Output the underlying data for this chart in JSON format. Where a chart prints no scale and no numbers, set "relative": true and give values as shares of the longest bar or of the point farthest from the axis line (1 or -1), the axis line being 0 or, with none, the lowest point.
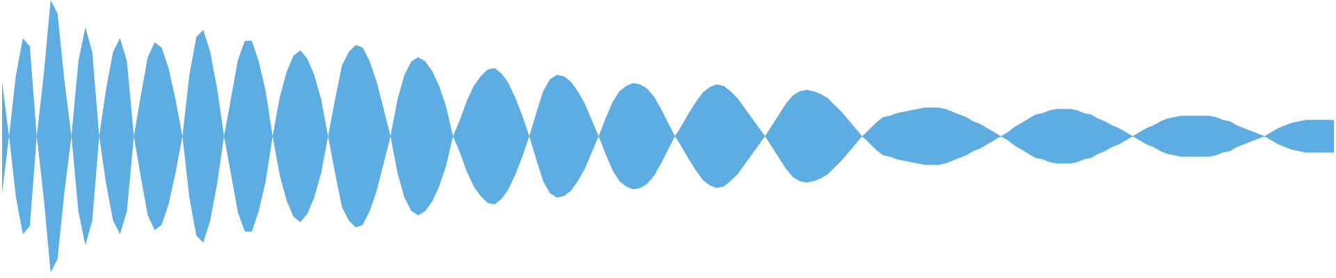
{
  "chart_data": {
    "type": "area",
    "relative": true,
    "ref_lines": [
      {
        "axis": "y",
        "value": 0,
        "color": "#5dade2",
        "line_style": "solid"
      }
    ],
    "categories": [
      null,
      null,
      null,
      null,
      null,
      null,
      null,
      null,
      null,
      null,
      null,
      null,
      null,
      null,
      null,
      null,
      null,
      null,
      null,
      null,
      null,
      null,
      null,
      null,
      null,
      null,
      null,
      null,
      null,
      null,
      null,
      null,
      null,
      null,
      null,
      null,
      null,
      null,
      null,
      null,
      null,
      null,
      null,
      null,
      null,
      null,
      null,
      null,
      null,
      null,
      null,
      null,
      null,
      null,
      null,
      null,
      null,
      null,
      null,
      null,
      null,
      null,
      null,
      null,
      null,
      null,
      null,
      null,
      null,
      null,
      null,
      null,
      null,
      null,
      null,
      null,
      null,
      null,
      null,
      null,
      null,
      null,
      null,
      null,
      null,
      null,
      null,
      null,
      null,
      null,
      null,
      null,
      null,
      null,
      null,
      null,
      null,
      null,
      null,
      null,
      null,
      null,
      null,
      null,
      null,
      null,
      null,
      null,
      null,
      null,
      null,
      null,
      null,
      null,
      null,
      null,
      null,
      null,
      null,
      null,
      null,
      null,
      null,
      null,
      null,
      null,
      null,
      null,
      null,
      null,
      null,
      null,
      null,
      null,
      null,
      null,
      null,
      null,
      null,
      null,
      null,
      null,
      null,
      null,
      null,
      null,
      null,
      null,
      null,
      null,
      null,
      null,
      null,
      null,
      null,
      null,
      null,
      null,
      null,
      null,
      null,
      null,
      null,
      null,
      null,
      null,
      null,
      null,
      null,
      null,
      null,
      null,
      null,
      null,
      null,
      null,
      null,
      null,
      null,
      null,
      null,
      null,
      null,
      null,
      null,
      null,
      null,
      null,
      null,
      null,
      null,
      null,
      null
    ],
    "series": [
      {
        "color": "#5dade2",
        "values": [
          0.4,
          0,
          0.45,
          0.72,
          0.66,
          0,
          0.45,
          1,
          0.9,
          0.4,
          0,
          0.55,
          0.8,
          0.62,
          0,
          0.35,
          0.62,
          0.72,
          0.55,
          0,
          0.3,
          0.58,
          0.69,
          0.65,
          0.5,
          0.27,
          0,
          0.45,
          0.73,
          0.78,
          0.62,
          0.35,
          0,
          0.28,
          0.56,
          0.7,
          0.7,
          0.55,
          0.33,
          0,
          0.28,
          0.47,
          0.59,
          0.63,
          0.57,
          0.45,
          0.27,
          0,
          0.27,
          0.52,
          0.62,
          0.67,
          0.65,
          0.55,
          0.4,
          0.2,
          0,
          0.27,
          0.45,
          0.55,
          0.58,
          0.55,
          0.48,
          0.37,
          0.22,
          0,
          0.12,
          0.26,
          0.37,
          0.44,
          0.49,
          0.5,
          0.46,
          0.39,
          0.28,
          0.15,
          0,
          0.17,
          0.33,
          0.42,
          0.45,
          0.44,
          0.4,
          0.33,
          0.24,
          0.12,
          0,
          0.13,
          0.25,
          0.33,
          0.37,
          0.39,
          0.38,
          0.35,
          0.29,
          0.2,
          0.1,
          0,
          0.08,
          0.17,
          0.25,
          0.32,
          0.36,
          0.38,
          0.37,
          0.33,
          0.28,
          0.21,
          0.14,
          0.07,
          0,
          0.08,
          0.16,
          0.24,
          0.3,
          0.33,
          0.34,
          0.33,
          0.31,
          0.28,
          0.23,
          0.18,
          0.12,
          0.06,
          0,
          0.05,
          0.1,
          0.14,
          0.15,
          0.17,
          0.18,
          0.19,
          0.2,
          0.21,
          0.21,
          0.21,
          0.2,
          0.18,
          0.16,
          0.14,
          0.11,
          0.09,
          0.06,
          0.03,
          0,
          0.03,
          0.07,
          0.1,
          0.13,
          0.16,
          0.17,
          0.19,
          0.2,
          0.2,
          0.2,
          0.19,
          0.17,
          0.16,
          0.13,
          0.11,
          0.08,
          0.06,
          0.03,
          0,
          0.03,
          0.06,
          0.08,
          0.11,
          0.13,
          0.14,
          0.15,
          0.15,
          0.15,
          0.15,
          0.15,
          0.14,
          0.12,
          0.11,
          0.08,
          0.06,
          0.04,
          0.02,
          0,
          0.03,
          0.06,
          0.08,
          0.1,
          0.11,
          0.12,
          0.12,
          0.12,
          0.12,
          0.12
        ]
      },
      {
        "color": "#5dade2",
        "values": [
          -0.42,
          0,
          -0.45,
          -0.72,
          -0.66,
          0,
          -0.45,
          -1,
          -0.9,
          -0.4,
          0,
          -0.55,
          -0.8,
          -0.62,
          0,
          -0.35,
          -0.62,
          -0.72,
          -0.55,
          0,
          -0.3,
          -0.58,
          -0.69,
          -0.65,
          -0.5,
          -0.27,
          0,
          -0.45,
          -0.73,
          -0.78,
          -0.62,
          -0.35,
          0,
          -0.28,
          -0.56,
          -0.7,
          -0.7,
          -0.55,
          -0.33,
          0,
          -0.28,
          -0.47,
          -0.59,
          -0.63,
          -0.57,
          -0.45,
          -0.27,
          0,
          -0.27,
          -0.52,
          -0.62,
          -0.67,
          -0.65,
          -0.55,
          -0.4,
          -0.2,
          0,
          -0.27,
          -0.45,
          -0.55,
          -0.58,
          -0.55,
          -0.48,
          -0.37,
          -0.22,
          0,
          -0.12,
          -0.26,
          -0.37,
          -0.44,
          -0.49,
          -0.5,
          -0.46,
          -0.39,
          -0.28,
          -0.15,
          0,
          -0.17,
          -0.33,
          -0.42,
          -0.45,
          -0.44,
          -0.4,
          -0.33,
          -0.24,
          -0.12,
          0,
          -0.13,
          -0.25,
          -0.33,
          -0.37,
          -0.39,
          -0.38,
          -0.35,
          -0.29,
          -0.2,
          -0.1,
          0,
          -0.08,
          -0.17,
          -0.25,
          -0.32,
          -0.36,
          -0.38,
          -0.37,
          -0.33,
          -0.28,
          -0.21,
          -0.14,
          -0.07,
          0,
          -0.08,
          -0.16,
          -0.24,
          -0.3,
          -0.33,
          -0.34,
          -0.33,
          -0.31,
          -0.28,
          -0.23,
          -0.18,
          -0.12,
          -0.06,
          0,
          -0.05,
          -0.1,
          -0.14,
          -0.15,
          -0.17,
          -0.18,
          -0.19,
          -0.2,
          -0.21,
          -0.21,
          -0.21,
          -0.2,
          -0.18,
          -0.16,
          -0.14,
          -0.11,
          -0.09,
          -0.06,
          -0.03,
          0,
          -0.03,
          -0.07,
          -0.1,
          -0.13,
          -0.16,
          -0.17,
          -0.19,
          -0.2,
          -0.2,
          -0.2,
          -0.19,
          -0.17,
          -0.16,
          -0.13,
          -0.11,
          -0.08,
          -0.06,
          -0.03,
          0,
          -0.03,
          -0.06,
          -0.08,
          -0.11,
          -0.13,
          -0.14,
          -0.15,
          -0.15,
          -0.15,
          -0.15,
          -0.15,
          -0.14,
          -0.12,
          -0.11,
          -0.08,
          -0.06,
          -0.04,
          -0.02,
          0,
          -0.03,
          -0.06,
          -0.08,
          -0.1,
          -0.11,
          -0.12,
          -0.12,
          -0.12,
          -0.12,
          -0.12
        ]
      }
    ]
  }
}
